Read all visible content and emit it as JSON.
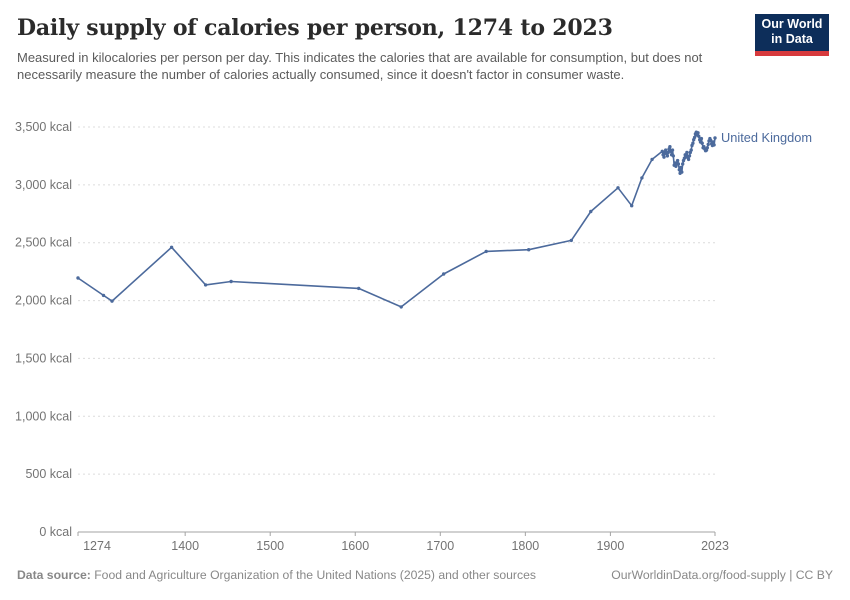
{
  "header": {
    "title": "Daily supply of calories per person, 1274 to 2023",
    "subtitle": "Measured in kilocalories per person per day. This indicates the calories that are available for consumption, but does not necessarily measure the number of calories actually consumed, since it doesn't factor in consumer waste.",
    "logo": {
      "line1": "Our World",
      "line2": "in Data"
    }
  },
  "colors": {
    "series_blue": "#4c6a9c",
    "grid": "#dcdcdc",
    "axis": "#a3a3a3",
    "tick_label": "#737373",
    "logo_navy": "#0d2e5a",
    "logo_red": "#d73a3d"
  },
  "chart_data": {
    "type": "line",
    "title": "Daily supply of calories per person, 1274 to 2023",
    "xlabel": "",
    "ylabel": "",
    "xlim": [
      1274,
      2023
    ],
    "ylim": [
      0,
      3500
    ],
    "x_ticks": [
      1274,
      1400,
      1500,
      1600,
      1700,
      1800,
      1900,
      2023
    ],
    "y_ticks": [
      0,
      500,
      1000,
      1500,
      2000,
      2500,
      3000,
      3500
    ],
    "y_tick_suffix": " kcal",
    "grid": "horizontal-dashed",
    "legend_position": "end-of-line-label",
    "series": [
      {
        "name": "United Kingdom",
        "color": "#4c6a9c",
        "points": [
          [
            1274,
            2195
          ],
          [
            1304,
            2045
          ],
          [
            1314,
            1995
          ],
          [
            1384,
            2460
          ],
          [
            1424,
            2135
          ],
          [
            1454,
            2165
          ],
          [
            1604,
            2105
          ],
          [
            1654,
            1945
          ],
          [
            1704,
            2230
          ],
          [
            1754,
            2425
          ],
          [
            1804,
            2440
          ],
          [
            1854,
            2520
          ],
          [
            1877,
            2770
          ],
          [
            1909,
            2975
          ],
          [
            1925,
            2820
          ],
          [
            1937,
            3060
          ],
          [
            1949,
            3220
          ],
          [
            1961,
            3290
          ],
          [
            1962,
            3260
          ],
          [
            1963,
            3240
          ],
          [
            1964,
            3280
          ],
          [
            1965,
            3300
          ],
          [
            1966,
            3270
          ],
          [
            1967,
            3250
          ],
          [
            1968,
            3280
          ],
          [
            1969,
            3310
          ],
          [
            1970,
            3330
          ],
          [
            1971,
            3290
          ],
          [
            1972,
            3260
          ],
          [
            1973,
            3300
          ],
          [
            1974,
            3250
          ],
          [
            1975,
            3170
          ],
          [
            1976,
            3190
          ],
          [
            1977,
            3160
          ],
          [
            1978,
            3180
          ],
          [
            1979,
            3210
          ],
          [
            1980,
            3180
          ],
          [
            1981,
            3130
          ],
          [
            1982,
            3100
          ],
          [
            1983,
            3150
          ],
          [
            1984,
            3110
          ],
          [
            1985,
            3180
          ],
          [
            1986,
            3210
          ],
          [
            1987,
            3230
          ],
          [
            1988,
            3260
          ],
          [
            1989,
            3240
          ],
          [
            1990,
            3280
          ],
          [
            1991,
            3240
          ],
          [
            1992,
            3220
          ],
          [
            1993,
            3250
          ],
          [
            1994,
            3280
          ],
          [
            1995,
            3300
          ],
          [
            1996,
            3340
          ],
          [
            1997,
            3360
          ],
          [
            1998,
            3390
          ],
          [
            1999,
            3410
          ],
          [
            2000,
            3440
          ],
          [
            2001,
            3455
          ],
          [
            2002,
            3430
          ],
          [
            2003,
            3450
          ],
          [
            2004,
            3420
          ],
          [
            2005,
            3390
          ],
          [
            2006,
            3370
          ],
          [
            2007,
            3400
          ],
          [
            2008,
            3360
          ],
          [
            2009,
            3320
          ],
          [
            2010,
            3330
          ],
          [
            2011,
            3310
          ],
          [
            2012,
            3295
          ],
          [
            2013,
            3300
          ],
          [
            2014,
            3320
          ],
          [
            2015,
            3350
          ],
          [
            2016,
            3380
          ],
          [
            2017,
            3400
          ],
          [
            2018,
            3385
          ],
          [
            2019,
            3355
          ],
          [
            2020,
            3340
          ],
          [
            2021,
            3370
          ],
          [
            2022,
            3345
          ],
          [
            2023,
            3405
          ]
        ]
      }
    ]
  },
  "footer": {
    "datasource_label": "Data source:",
    "datasource_text": "Food and Agriculture Organization of the United Nations (2025) and other sources",
    "link": "OurWorldinData.org/food-supply",
    "separator": "|",
    "license": "CC BY"
  }
}
